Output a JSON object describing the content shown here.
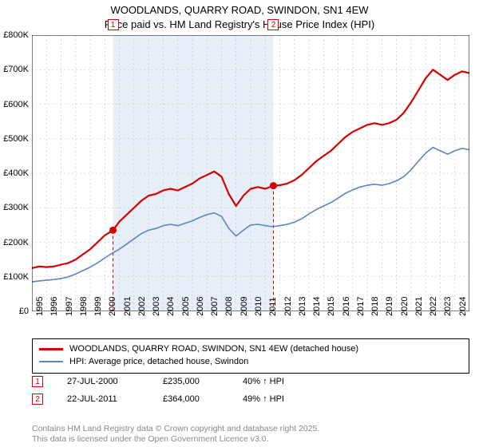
{
  "title": {
    "line1": "WOODLANDS, QUARRY ROAD, SWINDON, SN1 4EW",
    "line2": "Price paid vs. HM Land Registry's House Price Index (HPI)",
    "fontsize": 13,
    "color": "#000000"
  },
  "chart": {
    "type": "line",
    "background_color": "#ffffff",
    "grid_color": "#bfbfbf",
    "axis_color": "#000000",
    "shade_color": "#e8eef7",
    "x": {
      "min": 1995,
      "max": 2025,
      "ticks": [
        1995,
        1996,
        1997,
        1998,
        1999,
        2000,
        2001,
        2002,
        2003,
        2004,
        2005,
        2006,
        2007,
        2008,
        2009,
        2010,
        2011,
        2012,
        2013,
        2014,
        2015,
        2016,
        2017,
        2018,
        2019,
        2020,
        2021,
        2022,
        2023,
        2024
      ],
      "tick_fontsize": 11
    },
    "y": {
      "min": 0,
      "max": 800,
      "ticks": [
        0,
        100,
        200,
        300,
        400,
        500,
        600,
        700,
        800
      ],
      "tick_labels": [
        "£0",
        "£100K",
        "£200K",
        "£300K",
        "£400K",
        "£500K",
        "£600K",
        "£700K",
        "£800K"
      ],
      "tick_fontsize": 11
    },
    "shaded_from": 2000.56,
    "shaded_to": 2011.56,
    "series": [
      {
        "name": "WOODLANDS, QUARRY ROAD, SWINDON, SN1 4EW (detached house)",
        "color": "#d50000",
        "width": 2.2,
        "points": [
          [
            1995.0,
            125
          ],
          [
            1995.5,
            130
          ],
          [
            1996.0,
            128
          ],
          [
            1996.5,
            130
          ],
          [
            1997.0,
            135
          ],
          [
            1997.5,
            140
          ],
          [
            1998.0,
            150
          ],
          [
            1998.5,
            165
          ],
          [
            1999.0,
            180
          ],
          [
            1999.5,
            200
          ],
          [
            2000.0,
            220
          ],
          [
            2000.56,
            235
          ],
          [
            2001.0,
            260
          ],
          [
            2001.5,
            280
          ],
          [
            2002.0,
            300
          ],
          [
            2002.5,
            320
          ],
          [
            2003.0,
            335
          ],
          [
            2003.5,
            340
          ],
          [
            2004.0,
            350
          ],
          [
            2004.5,
            355
          ],
          [
            2005.0,
            350
          ],
          [
            2005.5,
            360
          ],
          [
            2006.0,
            370
          ],
          [
            2006.5,
            385
          ],
          [
            2007.0,
            395
          ],
          [
            2007.5,
            405
          ],
          [
            2008.0,
            390
          ],
          [
            2008.5,
            340
          ],
          [
            2009.0,
            305
          ],
          [
            2009.5,
            335
          ],
          [
            2010.0,
            355
          ],
          [
            2010.5,
            360
          ],
          [
            2011.0,
            355
          ],
          [
            2011.56,
            364
          ],
          [
            2012.0,
            365
          ],
          [
            2012.5,
            370
          ],
          [
            2013.0,
            380
          ],
          [
            2013.5,
            395
          ],
          [
            2014.0,
            415
          ],
          [
            2014.5,
            435
          ],
          [
            2015.0,
            450
          ],
          [
            2015.5,
            465
          ],
          [
            2016.0,
            485
          ],
          [
            2016.5,
            505
          ],
          [
            2017.0,
            520
          ],
          [
            2017.5,
            530
          ],
          [
            2018.0,
            540
          ],
          [
            2018.5,
            545
          ],
          [
            2019.0,
            540
          ],
          [
            2019.5,
            545
          ],
          [
            2020.0,
            555
          ],
          [
            2020.5,
            575
          ],
          [
            2021.0,
            605
          ],
          [
            2021.5,
            640
          ],
          [
            2022.0,
            675
          ],
          [
            2022.5,
            700
          ],
          [
            2023.0,
            685
          ],
          [
            2023.5,
            670
          ],
          [
            2024.0,
            685
          ],
          [
            2024.5,
            695
          ],
          [
            2025.0,
            690
          ]
        ]
      },
      {
        "name": "HPI: Average price, detached house, Swindon",
        "color": "#5b84c4",
        "width": 1.6,
        "points": [
          [
            1995.0,
            85
          ],
          [
            1995.5,
            88
          ],
          [
            1996.0,
            90
          ],
          [
            1996.5,
            92
          ],
          [
            1997.0,
            95
          ],
          [
            1997.5,
            100
          ],
          [
            1998.0,
            108
          ],
          [
            1998.5,
            118
          ],
          [
            1999.0,
            128
          ],
          [
            1999.5,
            140
          ],
          [
            2000.0,
            155
          ],
          [
            2000.5,
            168
          ],
          [
            2001.0,
            180
          ],
          [
            2001.5,
            195
          ],
          [
            2002.0,
            210
          ],
          [
            2002.5,
            225
          ],
          [
            2003.0,
            235
          ],
          [
            2003.5,
            240
          ],
          [
            2004.0,
            248
          ],
          [
            2004.5,
            252
          ],
          [
            2005.0,
            248
          ],
          [
            2005.5,
            255
          ],
          [
            2006.0,
            262
          ],
          [
            2006.5,
            272
          ],
          [
            2007.0,
            280
          ],
          [
            2007.5,
            285
          ],
          [
            2008.0,
            275
          ],
          [
            2008.5,
            240
          ],
          [
            2009.0,
            218
          ],
          [
            2009.5,
            235
          ],
          [
            2010.0,
            250
          ],
          [
            2010.5,
            252
          ],
          [
            2011.0,
            248
          ],
          [
            2011.5,
            245
          ],
          [
            2012.0,
            248
          ],
          [
            2012.5,
            252
          ],
          [
            2013.0,
            258
          ],
          [
            2013.5,
            268
          ],
          [
            2014.0,
            282
          ],
          [
            2014.5,
            295
          ],
          [
            2015.0,
            305
          ],
          [
            2015.5,
            315
          ],
          [
            2016.0,
            328
          ],
          [
            2016.5,
            342
          ],
          [
            2017.0,
            352
          ],
          [
            2017.5,
            360
          ],
          [
            2018.0,
            365
          ],
          [
            2018.5,
            368
          ],
          [
            2019.0,
            365
          ],
          [
            2019.5,
            370
          ],
          [
            2020.0,
            378
          ],
          [
            2020.5,
            390
          ],
          [
            2021.0,
            410
          ],
          [
            2021.5,
            435
          ],
          [
            2022.0,
            458
          ],
          [
            2022.5,
            475
          ],
          [
            2023.0,
            465
          ],
          [
            2023.5,
            455
          ],
          [
            2024.0,
            465
          ],
          [
            2024.5,
            472
          ],
          [
            2025.0,
            468
          ]
        ]
      }
    ],
    "sale_markers": [
      {
        "num": "1",
        "x": 2000.56,
        "y": 235
      },
      {
        "num": "2",
        "x": 2011.56,
        "y": 364
      }
    ]
  },
  "legend": {
    "rows": [
      {
        "color": "#d50000",
        "width": 3,
        "label": "WOODLANDS, QUARRY ROAD, SWINDON, SN1 4EW (detached house)"
      },
      {
        "color": "#5b84c4",
        "width": 2,
        "label": "HPI: Average price, detached house, Swindon"
      }
    ]
  },
  "sales": [
    {
      "num": "1",
      "date": "27-JUL-2000",
      "price": "£235,000",
      "pct": "40% ↑ HPI"
    },
    {
      "num": "2",
      "date": "22-JUL-2011",
      "price": "£364,000",
      "pct": "49% ↑ HPI"
    }
  ],
  "footer": {
    "line1": "Contains HM Land Registry data © Crown copyright and database right 2025.",
    "line2": "This data is licensed under the Open Government Licence v3.0.",
    "color": "#888888"
  }
}
